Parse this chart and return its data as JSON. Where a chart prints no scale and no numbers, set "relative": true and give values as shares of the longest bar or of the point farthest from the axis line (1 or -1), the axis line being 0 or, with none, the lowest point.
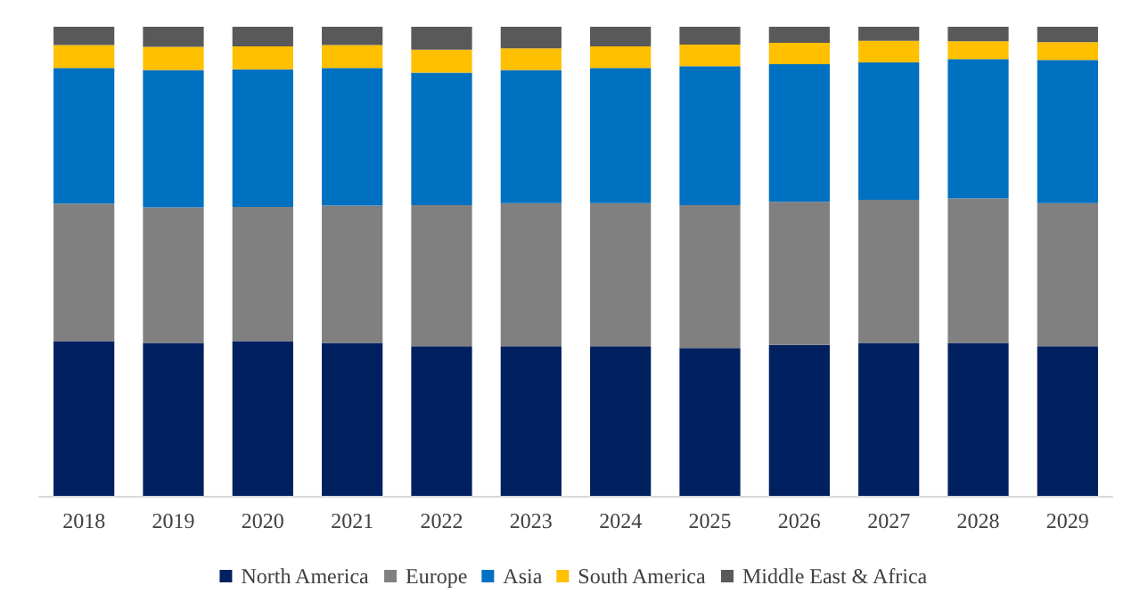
{
  "chart_data": {
    "type": "bar",
    "stacked": true,
    "relative": true,
    "legend": "bottom",
    "categories": [
      "2018",
      "2019",
      "2020",
      "2021",
      "2022",
      "2023",
      "2024",
      "2025",
      "2026",
      "2027",
      "2028",
      "2029"
    ],
    "series": [
      {
        "name": "North America",
        "color": "#002060",
        "values": [
          0.33,
          0.326,
          0.33,
          0.326,
          0.319,
          0.319,
          0.319,
          0.315,
          0.322,
          0.326,
          0.326,
          0.319
        ]
      },
      {
        "name": "Europe",
        "color": "#808080",
        "values": [
          0.293,
          0.289,
          0.286,
          0.293,
          0.301,
          0.305,
          0.305,
          0.305,
          0.305,
          0.305,
          0.308,
          0.305
        ]
      },
      {
        "name": "Asia",
        "color": "#0070c0",
        "values": [
          0.289,
          0.293,
          0.293,
          0.293,
          0.282,
          0.284,
          0.288,
          0.296,
          0.293,
          0.293,
          0.297,
          0.305
        ]
      },
      {
        "name": "South America",
        "color": "#ffc000",
        "values": [
          0.049,
          0.049,
          0.049,
          0.049,
          0.049,
          0.046,
          0.046,
          0.046,
          0.046,
          0.046,
          0.038,
          0.038
        ]
      },
      {
        "name": "Middle East & Africa",
        "color": "#595959",
        "values": [
          0.039,
          0.043,
          0.042,
          0.039,
          0.049,
          0.046,
          0.042,
          0.038,
          0.034,
          0.03,
          0.031,
          0.033
        ]
      }
    ]
  }
}
